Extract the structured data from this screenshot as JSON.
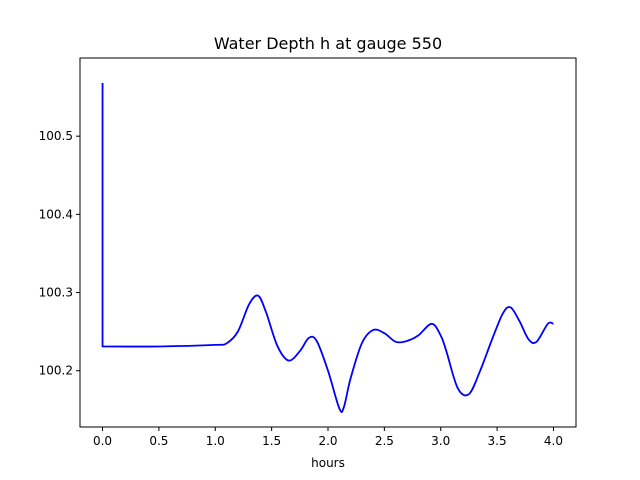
{
  "chart_data": {
    "type": "line",
    "title": "Water Depth h at gauge 550",
    "xlabel": "hours",
    "ylabel": "",
    "xlim": [
      -0.2,
      4.2
    ],
    "ylim": [
      100.128,
      100.6
    ],
    "xticks": [
      {
        "value": 0.0,
        "label": "0.0"
      },
      {
        "value": 0.5,
        "label": "0.5"
      },
      {
        "value": 1.0,
        "label": "1.0"
      },
      {
        "value": 1.5,
        "label": "1.5"
      },
      {
        "value": 2.0,
        "label": "2.0"
      },
      {
        "value": 2.5,
        "label": "2.5"
      },
      {
        "value": 3.0,
        "label": "3.0"
      },
      {
        "value": 3.5,
        "label": "3.5"
      },
      {
        "value": 4.0,
        "label": "4.0"
      }
    ],
    "yticks": [
      {
        "value": 100.2,
        "label": "100.2"
      },
      {
        "value": 100.3,
        "label": "100.3"
      },
      {
        "value": 100.4,
        "label": "100.4"
      },
      {
        "value": 100.5,
        "label": "100.5"
      }
    ],
    "grid": false,
    "series": [
      {
        "color": "#0000ff",
        "x": [
          0.0,
          0.0,
          0.5,
          1.0,
          1.1,
          1.2,
          1.3,
          1.38,
          1.45,
          1.55,
          1.65,
          1.75,
          1.83,
          1.9,
          2.0,
          2.1,
          2.14,
          2.2,
          2.3,
          2.4,
          2.5,
          2.6,
          2.7,
          2.8,
          2.92,
          3.0,
          3.05,
          3.15,
          3.25,
          3.35,
          3.45,
          3.55,
          3.62,
          3.7,
          3.78,
          3.85,
          3.95,
          4.0
        ],
        "y": [
          100.568,
          100.231,
          100.231,
          100.233,
          100.235,
          100.25,
          100.285,
          100.296,
          100.275,
          100.232,
          100.213,
          100.225,
          100.242,
          100.238,
          100.2,
          100.152,
          100.153,
          100.19,
          100.235,
          100.252,
          100.248,
          100.237,
          100.238,
          100.245,
          100.26,
          100.245,
          100.225,
          100.178,
          100.17,
          100.2,
          100.238,
          100.273,
          100.281,
          100.263,
          100.24,
          100.237,
          100.26,
          100.26
        ]
      }
    ]
  }
}
